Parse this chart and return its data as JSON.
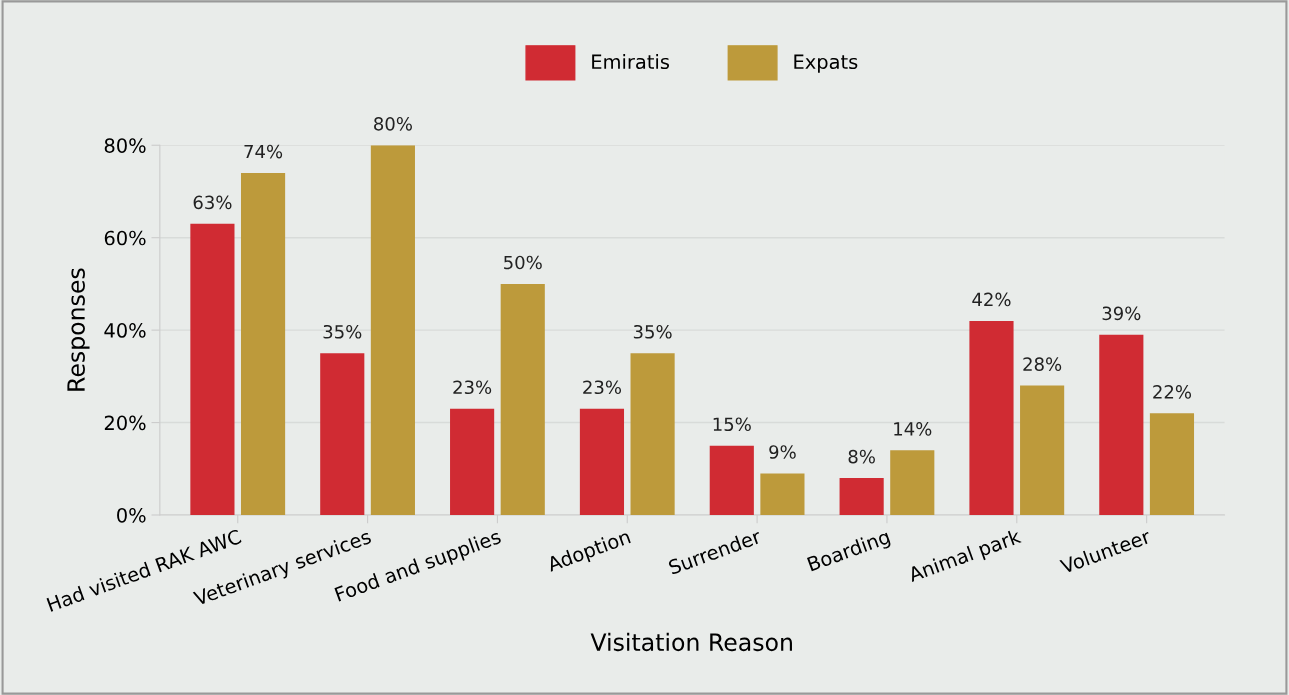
{
  "chart_data": {
    "type": "bar",
    "xlabel": "Visitation Reason",
    "ylabel": "Responses",
    "categories": [
      "Had visited RAK AWC",
      "Veterinary services",
      "Food and supplies",
      "Adoption",
      "Surrender",
      "Boarding",
      "Animal park",
      "Volunteer"
    ],
    "series": [
      {
        "name": "Emiratis",
        "color": "#d02b33",
        "values": [
          63,
          35,
          23,
          23,
          15,
          8,
          42,
          39
        ],
        "value_labels": [
          "63%",
          "35%",
          "23%",
          "23%",
          "15%",
          "8%",
          "42%",
          "39%"
        ]
      },
      {
        "name": "Expats",
        "color": "#bd9a3b",
        "values": [
          74,
          80,
          50,
          35,
          9,
          14,
          28,
          22
        ],
        "value_labels": [
          "74%",
          "80%",
          "50%",
          "35%",
          "9%",
          "14%",
          "28%",
          "22%"
        ]
      }
    ],
    "ylim": [
      0,
      80
    ],
    "yticks": [
      {
        "value": 0,
        "label": "0%"
      },
      {
        "value": 20,
        "label": "20%"
      },
      {
        "value": 40,
        "label": "40%"
      },
      {
        "value": 60,
        "label": "60%"
      },
      {
        "value": 80,
        "label": "80%"
      }
    ],
    "grid": "y",
    "legend": "top"
  }
}
